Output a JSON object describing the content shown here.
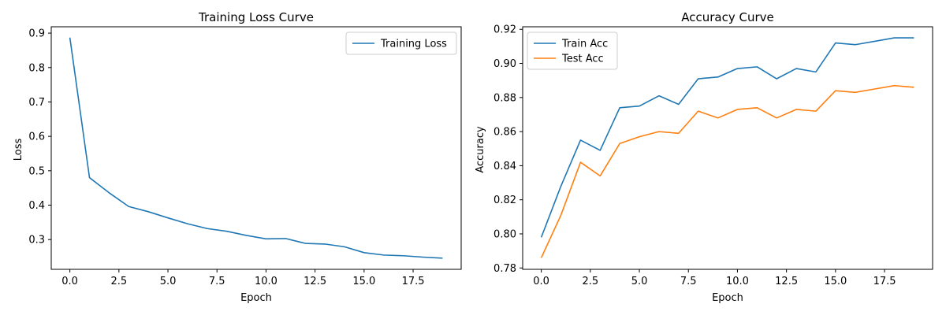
{
  "chart_data": [
    {
      "type": "line",
      "title": "Training Loss Curve",
      "xlabel": "Epoch",
      "ylabel": "Loss",
      "xlim": [
        -0.95,
        19.95
      ],
      "ylim": [
        0.2135,
        0.9185
      ],
      "xticks": [
        0.0,
        2.5,
        5.0,
        7.5,
        10.0,
        12.5,
        15.0,
        17.5
      ],
      "xtick_labels": [
        "0.0",
        "2.5",
        "5.0",
        "7.5",
        "10.0",
        "12.5",
        "15.0",
        "17.5"
      ],
      "yticks": [
        0.3,
        0.4,
        0.5,
        0.6,
        0.7,
        0.8,
        0.9
      ],
      "ytick_labels": [
        "0.3",
        "0.4",
        "0.5",
        "0.6",
        "0.7",
        "0.8",
        "0.9"
      ],
      "grid": false,
      "legend_position": "top-right",
      "x": [
        0,
        1,
        2,
        3,
        4,
        5,
        6,
        7,
        8,
        9,
        10,
        11,
        12,
        13,
        14,
        15,
        16,
        17,
        18,
        19
      ],
      "series": [
        {
          "name": "Training Loss",
          "color": "#1f77b4",
          "values": [
            0.887,
            0.48,
            0.436,
            0.396,
            0.381,
            0.363,
            0.346,
            0.332,
            0.324,
            0.312,
            0.302,
            0.303,
            0.289,
            0.287,
            0.279,
            0.262,
            0.255,
            0.253,
            0.249,
            0.246
          ]
        }
      ]
    },
    {
      "type": "line",
      "title": "Accuracy Curve",
      "xlabel": "Epoch",
      "ylabel": "Accuracy",
      "xlim": [
        -0.95,
        19.95
      ],
      "ylim": [
        0.7792,
        0.9215
      ],
      "xticks": [
        0.0,
        2.5,
        5.0,
        7.5,
        10.0,
        12.5,
        15.0,
        17.5
      ],
      "xtick_labels": [
        "0.0",
        "2.5",
        "5.0",
        "7.5",
        "10.0",
        "12.5",
        "15.0",
        "17.5"
      ],
      "yticks": [
        0.78,
        0.8,
        0.82,
        0.84,
        0.86,
        0.88,
        0.9,
        0.92
      ],
      "ytick_labels": [
        "0.78",
        "0.80",
        "0.82",
        "0.84",
        "0.86",
        "0.88",
        "0.90",
        "0.92"
      ],
      "grid": false,
      "legend_position": "top-left",
      "x": [
        0,
        1,
        2,
        3,
        4,
        5,
        6,
        7,
        8,
        9,
        10,
        11,
        12,
        13,
        14,
        15,
        16,
        17,
        18,
        19
      ],
      "series": [
        {
          "name": "Train Acc",
          "color": "#1f77b4",
          "values": [
            0.798,
            0.828,
            0.855,
            0.849,
            0.874,
            0.875,
            0.881,
            0.876,
            0.891,
            0.892,
            0.897,
            0.898,
            0.891,
            0.897,
            0.895,
            0.912,
            0.911,
            0.913,
            0.915,
            0.915
          ]
        },
        {
          "name": "Test Acc",
          "color": "#ff7f0e",
          "values": [
            0.786,
            0.811,
            0.842,
            0.834,
            0.853,
            0.857,
            0.86,
            0.859,
            0.872,
            0.868,
            0.873,
            0.874,
            0.868,
            0.873,
            0.872,
            0.884,
            0.883,
            0.885,
            0.887,
            0.886
          ]
        }
      ]
    }
  ]
}
